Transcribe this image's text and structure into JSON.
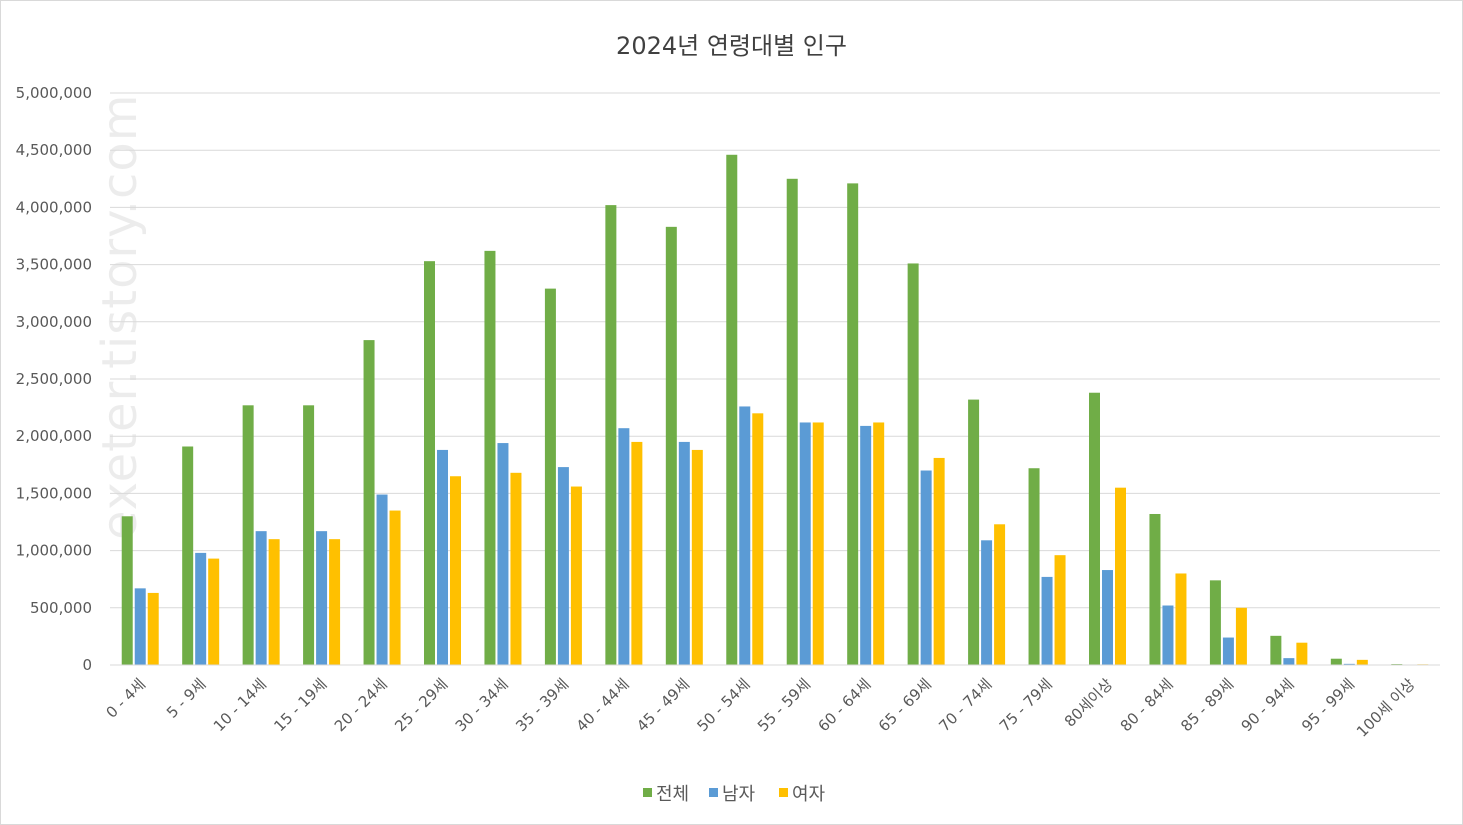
{
  "watermark": "exeter.tistory.com",
  "chart_data": {
    "type": "bar",
    "title": "2024년 연령대별 인구",
    "xlabel": "",
    "ylabel": "",
    "ylim": [
      0,
      5000000
    ],
    "yticks": [
      "0",
      "500,000",
      "1,000,000",
      "1,500,000",
      "2,000,000",
      "2,500,000",
      "3,000,000",
      "3,500,000",
      "4,000,000",
      "4,500,000",
      "5,000,000"
    ],
    "ytick_values": [
      0,
      500000,
      1000000,
      1500000,
      2000000,
      2500000,
      3000000,
      3500000,
      4000000,
      4500000,
      5000000
    ],
    "grid": true,
    "legend_position": "bottom",
    "categories": [
      "0 - 4세",
      "5 - 9세",
      "10 - 14세",
      "15 - 19세",
      "20 - 24세",
      "25 - 29세",
      "30 - 34세",
      "35 - 39세",
      "40 - 44세",
      "45 - 49세",
      "50 - 54세",
      "55 - 59세",
      "60 - 64세",
      "65 - 69세",
      "70 - 74세",
      "75 - 79세",
      "80세이상",
      "80 - 84세",
      "85 - 89세",
      "90 - 94세",
      "95 - 99세",
      "100세 이상"
    ],
    "series": [
      {
        "name": "전체",
        "color": "#70ad47",
        "values": [
          1300000,
          1910000,
          2270000,
          2270000,
          2840000,
          3530000,
          3620000,
          3290000,
          4020000,
          3830000,
          4460000,
          4250000,
          4210000,
          3510000,
          2320000,
          1720000,
          2380000,
          1320000,
          740000,
          255000,
          55000,
          8000
        ]
      },
      {
        "name": "남자",
        "color": "#5b9bd5",
        "values": [
          670000,
          980000,
          1170000,
          1170000,
          1490000,
          1880000,
          1940000,
          1730000,
          2070000,
          1950000,
          2260000,
          2120000,
          2090000,
          1700000,
          1090000,
          770000,
          830000,
          520000,
          240000,
          60000,
          10000,
          2000
        ]
      },
      {
        "name": "여자",
        "color": "#ffc000",
        "values": [
          630000,
          930000,
          1100000,
          1100000,
          1350000,
          1650000,
          1680000,
          1560000,
          1950000,
          1880000,
          2200000,
          2120000,
          2120000,
          1810000,
          1230000,
          960000,
          1550000,
          800000,
          500000,
          195000,
          45000,
          6000
        ]
      }
    ]
  }
}
